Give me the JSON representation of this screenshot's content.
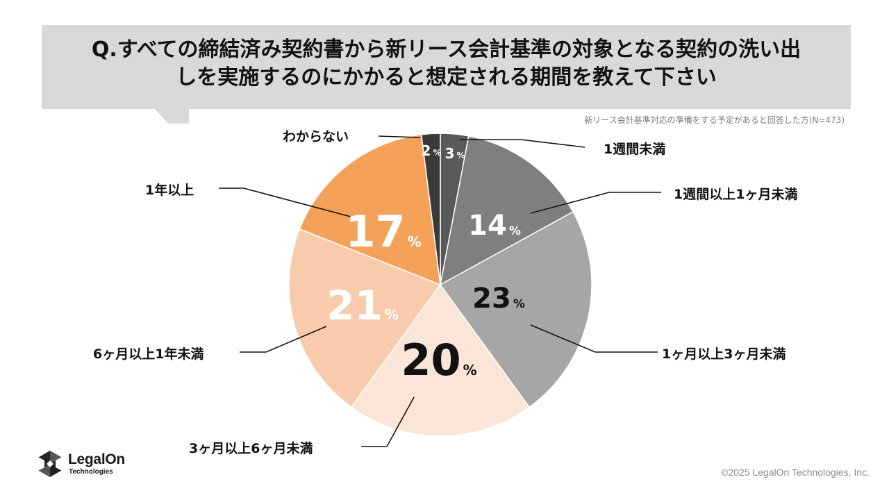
{
  "question": {
    "line1": "Q.すべての締結済み契約書から新リース会計基準の対象となる契約の洗い出",
    "line2": "しを実施するのにかかると想定される期間を教えて下さい"
  },
  "respondent_note": "新リース会計基準対応の準備をする予定があると回答した方(N=473)",
  "chart_data": {
    "type": "pie",
    "unit": "%",
    "categories": [
      "1週間未満",
      "1週間以上1ヶ月未満",
      "1ヶ月以上3ヶ月未満",
      "3ヶ月以上6ヶ月未満",
      "6ヶ月以上1年未満",
      "1年以上",
      "わからない"
    ],
    "values": [
      3,
      14,
      23,
      20,
      21,
      17,
      2
    ],
    "colors": [
      "#595959",
      "#7f7f7f",
      "#a6a6a6",
      "#fbe5d6",
      "#f8cbad",
      "#f4a15a",
      "#3a3a3a"
    ],
    "start": "12 o'clock, clockwise"
  },
  "logo": {
    "name": "LegalOn",
    "sub": "Technologies"
  },
  "copyright": "©2025 LegalOn Technologies, Inc."
}
